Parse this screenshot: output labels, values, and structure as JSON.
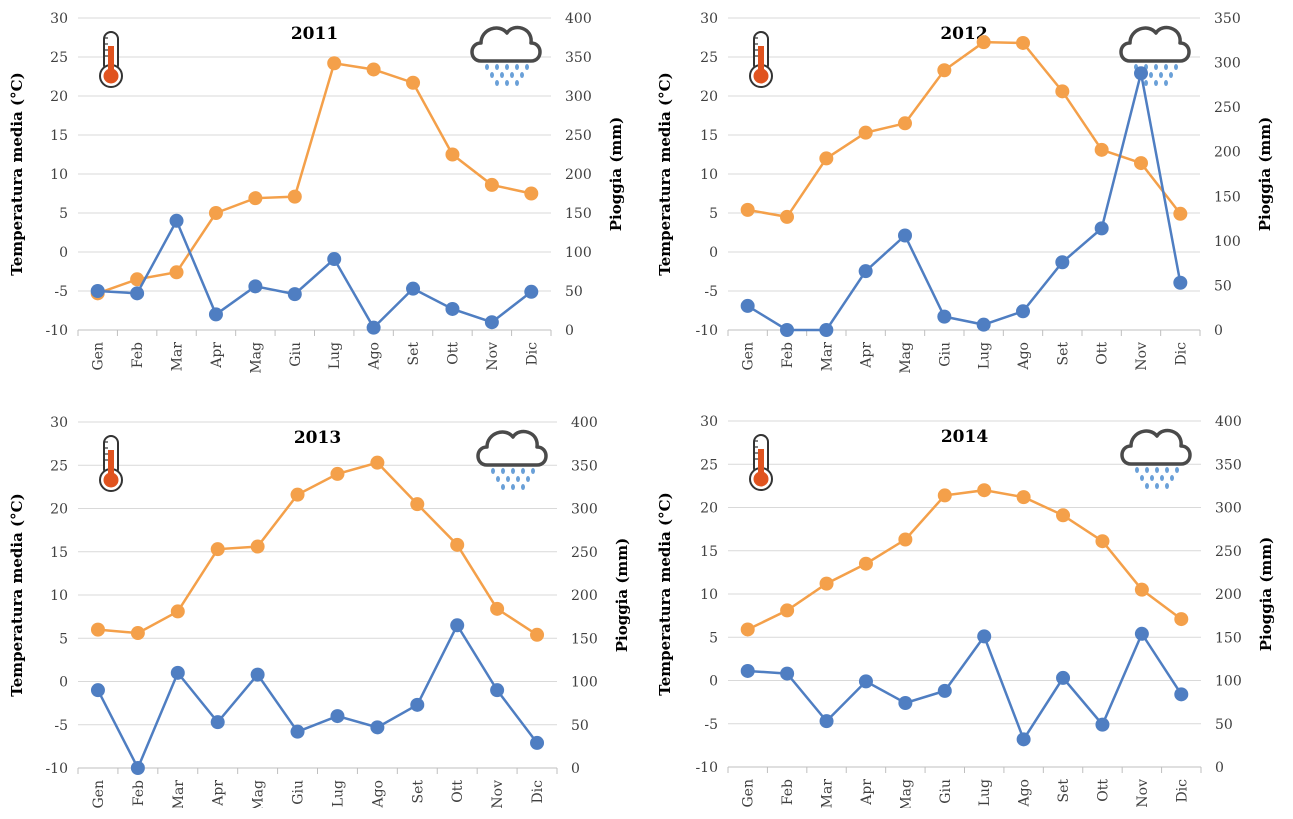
{
  "colors": {
    "temperature": "#f4a04a",
    "rainfall": "#4f7ec2",
    "grid": "#d9d9d9"
  },
  "chart_data": [
    {
      "type": "line",
      "title": "2011",
      "categories": [
        "Gen",
        "Feb",
        "Mar",
        "Apr",
        "Mag",
        "Giu",
        "Lug",
        "Ago",
        "Set",
        "Ott",
        "Nov",
        "Dic"
      ],
      "ylabel": "Temperatura media (°C)",
      "y2label": "Pioggia (mm)",
      "ylim": [
        -10,
        30
      ],
      "y2lim": [
        0,
        400
      ],
      "yticks": [
        "30",
        "25",
        "20",
        "15",
        "10",
        "5",
        "0",
        "-5",
        "-10"
      ],
      "y2ticks": [
        "400",
        "350",
        "300",
        "250",
        "200",
        "150",
        "100",
        "50",
        "0"
      ],
      "grid": true,
      "icons": [
        "thermometer-icon",
        "rain-cloud-icon"
      ],
      "series": [
        {
          "axis": "left",
          "color": "#f4a04a",
          "values": [
            -5.3,
            -3.5,
            -2.6,
            5.0,
            6.9,
            7.1,
            24.2,
            23.4,
            21.7,
            12.5,
            8.6,
            7.5
          ]
        },
        {
          "axis": "right",
          "color": "#4f7ec2",
          "values": [
            50,
            47,
            140,
            20,
            56,
            46,
            91,
            3,
            53,
            27,
            10,
            49
          ]
        }
      ]
    },
    {
      "type": "line",
      "title": "2012",
      "categories": [
        "Gen",
        "Feb",
        "Mar",
        "Apr",
        "Mag",
        "Giu",
        "Lug",
        "Ago",
        "Set",
        "Ott",
        "Nov",
        "Dic"
      ],
      "ylabel": "Temperatura media (°C)",
      "y2label": "Pioggia (mm)",
      "ylim": [
        -10,
        30
      ],
      "y2lim": [
        0,
        350
      ],
      "yticks": [
        "30",
        "25",
        "20",
        "15",
        "10",
        "5",
        "0",
        "-5",
        "-10"
      ],
      "y2ticks": [
        "350",
        "300",
        "250",
        "200",
        "150",
        "100",
        "50",
        "0"
      ],
      "grid": true,
      "icons": [
        "thermometer-icon",
        "rain-cloud-icon"
      ],
      "series": [
        {
          "axis": "left",
          "color": "#f4a04a",
          "values": [
            5.4,
            4.5,
            12.0,
            15.3,
            16.5,
            23.3,
            26.9,
            26.8,
            20.6,
            13.1,
            11.4,
            4.9
          ]
        },
        {
          "axis": "right",
          "color": "#4f7ec2",
          "values": [
            27,
            0,
            0,
            66,
            106,
            15,
            6,
            21,
            76,
            114,
            288,
            53
          ]
        }
      ]
    },
    {
      "type": "line",
      "title": "2013",
      "categories": [
        "Gen",
        "Feb",
        "Mar",
        "Apr",
        "Mag",
        "Giu",
        "Lug",
        "Ago",
        "Set",
        "Ott",
        "Nov",
        "Dic"
      ],
      "ylabel": "Temperatura media (°C)",
      "y2label": "Pioggia (mm)",
      "ylim": [
        -10,
        30
      ],
      "y2lim": [
        0,
        400
      ],
      "yticks": [
        "30",
        "25",
        "20",
        "15",
        "10",
        "5",
        "0",
        "-5",
        "-10"
      ],
      "y2ticks": [
        "400",
        "350",
        "300",
        "250",
        "200",
        "150",
        "100",
        "50",
        "0"
      ],
      "grid": true,
      "icons": [
        "thermometer-icon",
        "rain-cloud-icon"
      ],
      "series": [
        {
          "axis": "left",
          "color": "#f4a04a",
          "values": [
            6.0,
            5.6,
            8.1,
            15.3,
            15.6,
            21.6,
            24.0,
            25.3,
            20.5,
            15.8,
            8.4,
            5.4
          ]
        },
        {
          "axis": "right",
          "color": "#4f7ec2",
          "values": [
            90,
            0,
            110,
            53,
            108,
            42,
            60,
            47,
            73,
            165,
            90,
            29
          ]
        }
      ]
    },
    {
      "type": "line",
      "title": "2014",
      "categories": [
        "Gen",
        "Feb",
        "Mar",
        "Apr",
        "Mag",
        "Giu",
        "Lug",
        "Ago",
        "Set",
        "Ott",
        "Nov",
        "Dic"
      ],
      "ylabel": "Temperatura media (°C)",
      "y2label": "Pioggia (mm)",
      "ylim": [
        -10,
        30
      ],
      "y2lim": [
        0,
        400
      ],
      "yticks": [
        "30",
        "25",
        "20",
        "15",
        "10",
        "5",
        "0",
        "-5",
        "-10"
      ],
      "y2ticks": [
        "400",
        "350",
        "300",
        "250",
        "200",
        "150",
        "100",
        "50",
        "0"
      ],
      "grid": true,
      "icons": [
        "thermometer-icon",
        "rain-cloud-icon"
      ],
      "series": [
        {
          "axis": "left",
          "color": "#f4a04a",
          "values": [
            5.9,
            8.1,
            11.2,
            13.5,
            16.3,
            21.4,
            22.0,
            21.2,
            19.1,
            16.1,
            10.5,
            7.1
          ]
        },
        {
          "axis": "right",
          "color": "#4f7ec2",
          "values": [
            111,
            108,
            53,
            99,
            74,
            88,
            151,
            32,
            103,
            49,
            154,
            84
          ]
        }
      ]
    }
  ]
}
